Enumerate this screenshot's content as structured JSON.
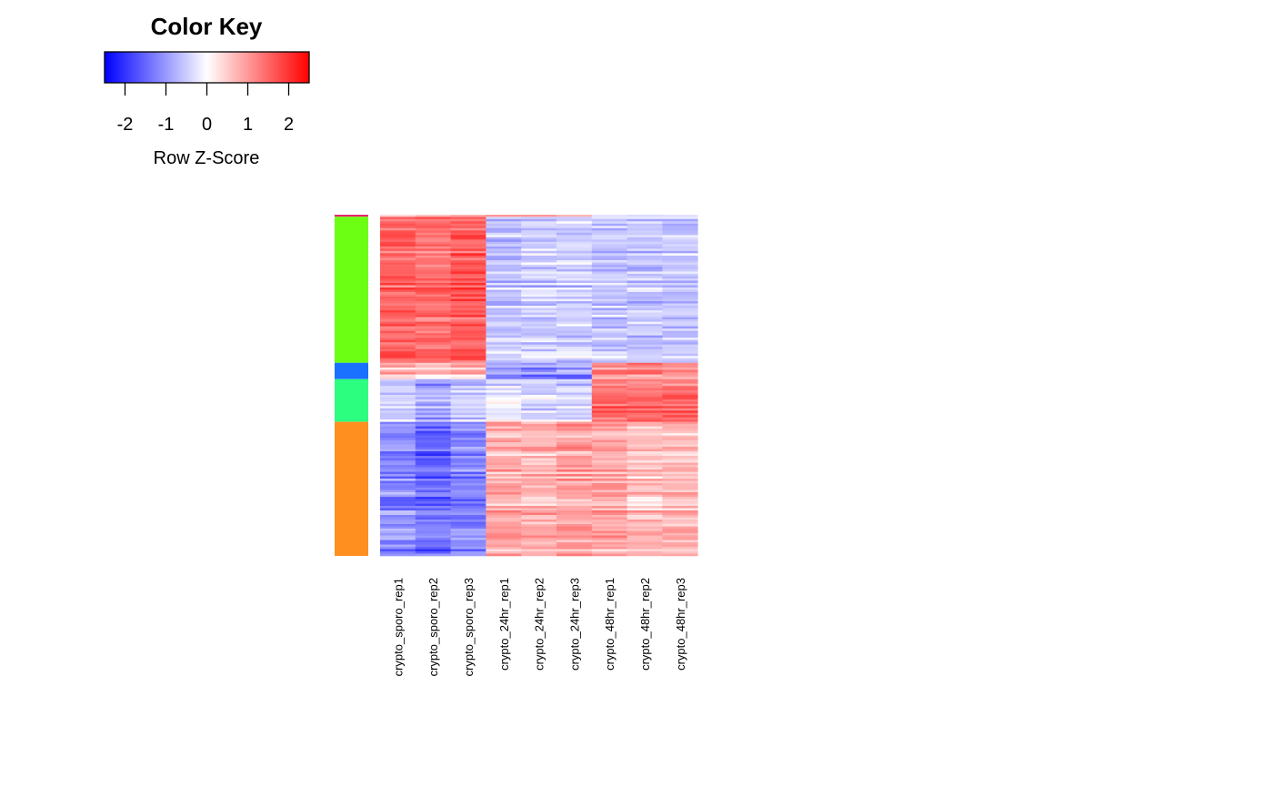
{
  "chart_data": {
    "type": "heatmap",
    "title": "",
    "color_key": {
      "title": "Color Key",
      "xlabel": "Row Z-Score",
      "range": [
        -2.5,
        2.5
      ],
      "ticks": [
        -2,
        -1,
        0,
        1,
        2
      ],
      "tick_labels": [
        "-2",
        "-1",
        "0",
        "1",
        "2"
      ],
      "colors": {
        "low": "#0000ff",
        "mid": "#ffffff",
        "high": "#ff0000"
      }
    },
    "columns": [
      "crypto_sporo_rep1",
      "crypto_sporo_rep2",
      "crypto_sporo_rep3",
      "crypto_24hr_rep1",
      "crypto_24hr_rep2",
      "crypto_24hr_rep3",
      "crypto_48hr_rep1",
      "crypto_48hr_rep2",
      "crypto_48hr_rep3"
    ],
    "row_clusters": [
      {
        "color": "#e6246b",
        "fraction": 0.006,
        "z": [
          0.4,
          0.4,
          0.4,
          0.8,
          0.8,
          0.8,
          -0.6,
          -0.6,
          -0.6
        ]
      },
      {
        "color": "#6cff13",
        "fraction": 0.428,
        "z": [
          1.5,
          1.4,
          1.6,
          -0.6,
          -0.5,
          -0.5,
          -0.6,
          -0.6,
          -0.6
        ]
      },
      {
        "color": "#1a70ff",
        "fraction": 0.048,
        "z": [
          0.7,
          0.4,
          0.7,
          -1.0,
          -1.2,
          -1.1,
          1.1,
          1.1,
          1.1
        ]
      },
      {
        "color": "#2cff80",
        "fraction": 0.125,
        "z": [
          -0.6,
          -0.9,
          -0.5,
          -0.2,
          -0.4,
          -0.4,
          1.4,
          1.4,
          1.4
        ]
      },
      {
        "color": "#ff8f1f",
        "fraction": 0.393,
        "z": [
          -1.1,
          -1.5,
          -1.2,
          0.8,
          0.7,
          0.9,
          0.8,
          0.6,
          0.7
        ]
      }
    ]
  }
}
